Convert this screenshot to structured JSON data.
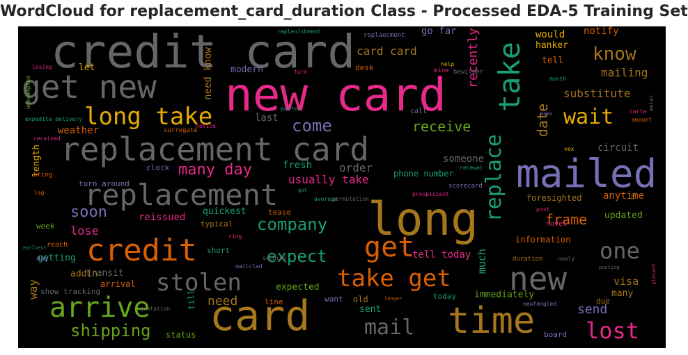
{
  "title": "WordCloud for replacement_card_duration Class - Processed EDA-5 Training Set",
  "palette": {
    "orange": "#d95f02",
    "green": "#66a61e",
    "pink": "#e7298a",
    "purple": "#7570b3",
    "teal": "#1b9e77",
    "mustard": "#e6ab02",
    "bronze": "#a6761d",
    "gray": "#666666"
  },
  "words": [
    {
      "text": "credit card",
      "color": "gray"
    },
    {
      "text": "new card",
      "color": "pink"
    },
    {
      "text": "get new",
      "color": "gray"
    },
    {
      "text": "take",
      "color": "teal"
    },
    {
      "text": "long take",
      "color": "mustard"
    },
    {
      "text": "replacement card",
      "color": "gray"
    },
    {
      "text": "replacement",
      "color": "gray"
    },
    {
      "text": "mailed",
      "color": "purple"
    },
    {
      "text": "long",
      "color": "bronze"
    },
    {
      "text": "card",
      "color": "bronze"
    },
    {
      "text": "credit",
      "color": "orange"
    },
    {
      "text": "arrive",
      "color": "green"
    },
    {
      "text": "stolen",
      "color": "gray"
    },
    {
      "text": "time",
      "color": "bronze"
    },
    {
      "text": "new",
      "color": "gray"
    },
    {
      "text": "get",
      "color": "orange"
    },
    {
      "text": "take get",
      "color": "orange"
    },
    {
      "text": "mail",
      "color": "gray"
    },
    {
      "text": "lost",
      "color": "pink"
    },
    {
      "text": "one",
      "color": "gray"
    },
    {
      "text": "wait",
      "color": "mustard"
    },
    {
      "text": "know",
      "color": "bronze"
    },
    {
      "text": "come",
      "color": "purple"
    },
    {
      "text": "company",
      "color": "teal"
    },
    {
      "text": "replace",
      "color": "teal"
    },
    {
      "text": "shipping",
      "color": "green"
    },
    {
      "text": "receive",
      "color": "green"
    },
    {
      "text": "soon",
      "color": "purple"
    },
    {
      "text": "expect",
      "color": "teal"
    },
    {
      "text": "many day",
      "color": "pink"
    },
    {
      "text": "date",
      "color": "bronze"
    },
    {
      "text": "recently",
      "color": "pink"
    },
    {
      "text": "card card",
      "color": "bronze"
    },
    {
      "text": "mailing",
      "color": "bronze"
    },
    {
      "text": "substitute",
      "color": "bronze"
    },
    {
      "text": "frame",
      "color": "orange"
    },
    {
      "text": "usually take",
      "color": "pink"
    },
    {
      "text": "need",
      "color": "bronze"
    },
    {
      "text": "send",
      "color": "purple"
    },
    {
      "text": "much",
      "color": "teal"
    },
    {
      "text": "lose",
      "color": "pink"
    },
    {
      "text": "visa",
      "color": "bronze"
    },
    {
      "text": "weather",
      "color": "orange"
    },
    {
      "text": "last",
      "color": "gray"
    },
    {
      "text": "fresh",
      "color": "teal"
    },
    {
      "text": "order",
      "color": "gray"
    },
    {
      "text": "length",
      "color": "mustard"
    },
    {
      "text": "need know",
      "color": "bronze"
    },
    {
      "text": "modern",
      "color": "purple"
    },
    {
      "text": "let",
      "color": "mustard"
    },
    {
      "text": "go far",
      "color": "purple"
    },
    {
      "text": "would",
      "color": "mustard"
    },
    {
      "text": "hanker",
      "color": "mustard"
    },
    {
      "text": "notify",
      "color": "orange"
    },
    {
      "text": "tell",
      "color": "orange"
    },
    {
      "text": "circuit",
      "color": "gray"
    },
    {
      "text": "someone",
      "color": "gray"
    },
    {
      "text": "anytime",
      "color": "orange"
    },
    {
      "text": "updated",
      "color": "green"
    },
    {
      "text": "foresighted",
      "color": "bronze"
    },
    {
      "text": "reissued",
      "color": "pink"
    },
    {
      "text": "quickest",
      "color": "teal"
    },
    {
      "text": "typical",
      "color": "bronze"
    },
    {
      "text": "tease",
      "color": "orange"
    },
    {
      "text": "information",
      "color": "orange"
    },
    {
      "text": "addin",
      "color": "bronze"
    },
    {
      "text": "transit",
      "color": "gray"
    },
    {
      "text": "getting",
      "color": "teal"
    },
    {
      "text": "arrival",
      "color": "orange"
    },
    {
      "text": "show tracking",
      "color": "gray"
    },
    {
      "text": "expected",
      "color": "green"
    },
    {
      "text": "immediately",
      "color": "green"
    },
    {
      "text": "tell today",
      "color": "pink"
    },
    {
      "text": "phone number",
      "color": "teal"
    },
    {
      "text": "scorecard",
      "color": "purple"
    },
    {
      "text": "status",
      "color": "green"
    },
    {
      "text": "way",
      "color": "bronze"
    },
    {
      "text": "till",
      "color": "teal"
    },
    {
      "text": "old",
      "color": "bronze"
    },
    {
      "text": "want",
      "color": "purple"
    },
    {
      "text": "sent",
      "color": "teal"
    },
    {
      "text": "many",
      "color": "bronze"
    },
    {
      "text": "due",
      "color": "bronze"
    },
    {
      "text": "today",
      "color": "teal"
    },
    {
      "text": "line",
      "color": "orange"
    },
    {
      "text": "board",
      "color": "purple"
    },
    {
      "text": "short",
      "color": "teal"
    },
    {
      "text": "clock",
      "color": "purple"
    },
    {
      "text": "turn around",
      "color": "purple"
    },
    {
      "text": "week",
      "color": "green"
    },
    {
      "text": "reach",
      "color": "orange"
    },
    {
      "text": "day",
      "color": "purple"
    },
    {
      "text": "call",
      "color": "purple"
    },
    {
      "text": "desk",
      "color": "orange"
    },
    {
      "text": "bring",
      "color": "orange"
    },
    {
      "text": "surrogate",
      "color": "orange"
    },
    {
      "text": "replaecment",
      "color": "purple"
    },
    {
      "text": "replenishment",
      "color": "teal"
    },
    {
      "text": "turn",
      "color": "pink"
    },
    {
      "text": "mine",
      "color": "pink"
    },
    {
      "text": "bewilder",
      "color": "gray"
    },
    {
      "text": "help",
      "color": "mustard"
    },
    {
      "text": "losing",
      "color": "pink"
    },
    {
      "text": "unexampled",
      "color": "green"
    },
    {
      "text": "expedite delivery",
      "color": "teal"
    },
    {
      "text": "poster",
      "color": "teal"
    },
    {
      "text": "notice",
      "color": "pink"
    },
    {
      "text": "received",
      "color": "pink"
    },
    {
      "text": "month",
      "color": "teal"
    },
    {
      "text": "make",
      "color": "purple"
    },
    {
      "text": "carte",
      "color": "pink"
    },
    {
      "text": "amount",
      "color": "orange"
    },
    {
      "text": "meter",
      "color": "gray"
    },
    {
      "text": "vex",
      "color": "mustard"
    },
    {
      "text": "renewal",
      "color": "teal"
    },
    {
      "text": "got",
      "color": "teal"
    },
    {
      "text": "average",
      "color": "teal"
    },
    {
      "text": "permutation",
      "color": "gray"
    },
    {
      "text": "prospicient",
      "color": "pink"
    },
    {
      "text": "post",
      "color": "pink"
    },
    {
      "text": "cc",
      "color": "green"
    },
    {
      "text": "novel",
      "color": "pink"
    },
    {
      "text": "lag",
      "color": "orange"
    },
    {
      "text": "earliest",
      "color": "teal"
    },
    {
      "text": "ring",
      "color": "pink"
    },
    {
      "text": "sending",
      "color": "gray"
    },
    {
      "text": "mailclad",
      "color": "purple"
    },
    {
      "text": "duration",
      "color": "bronze"
    },
    {
      "text": "newly",
      "color": "gray"
    },
    {
      "text": "posting",
      "color": "gray"
    },
    {
      "text": "placard",
      "color": "pink"
    },
    {
      "text": "quotation",
      "color": "gray"
    },
    {
      "text": "longer",
      "color": "orange"
    },
    {
      "text": "newfangled",
      "color": "purple"
    }
  ]
}
